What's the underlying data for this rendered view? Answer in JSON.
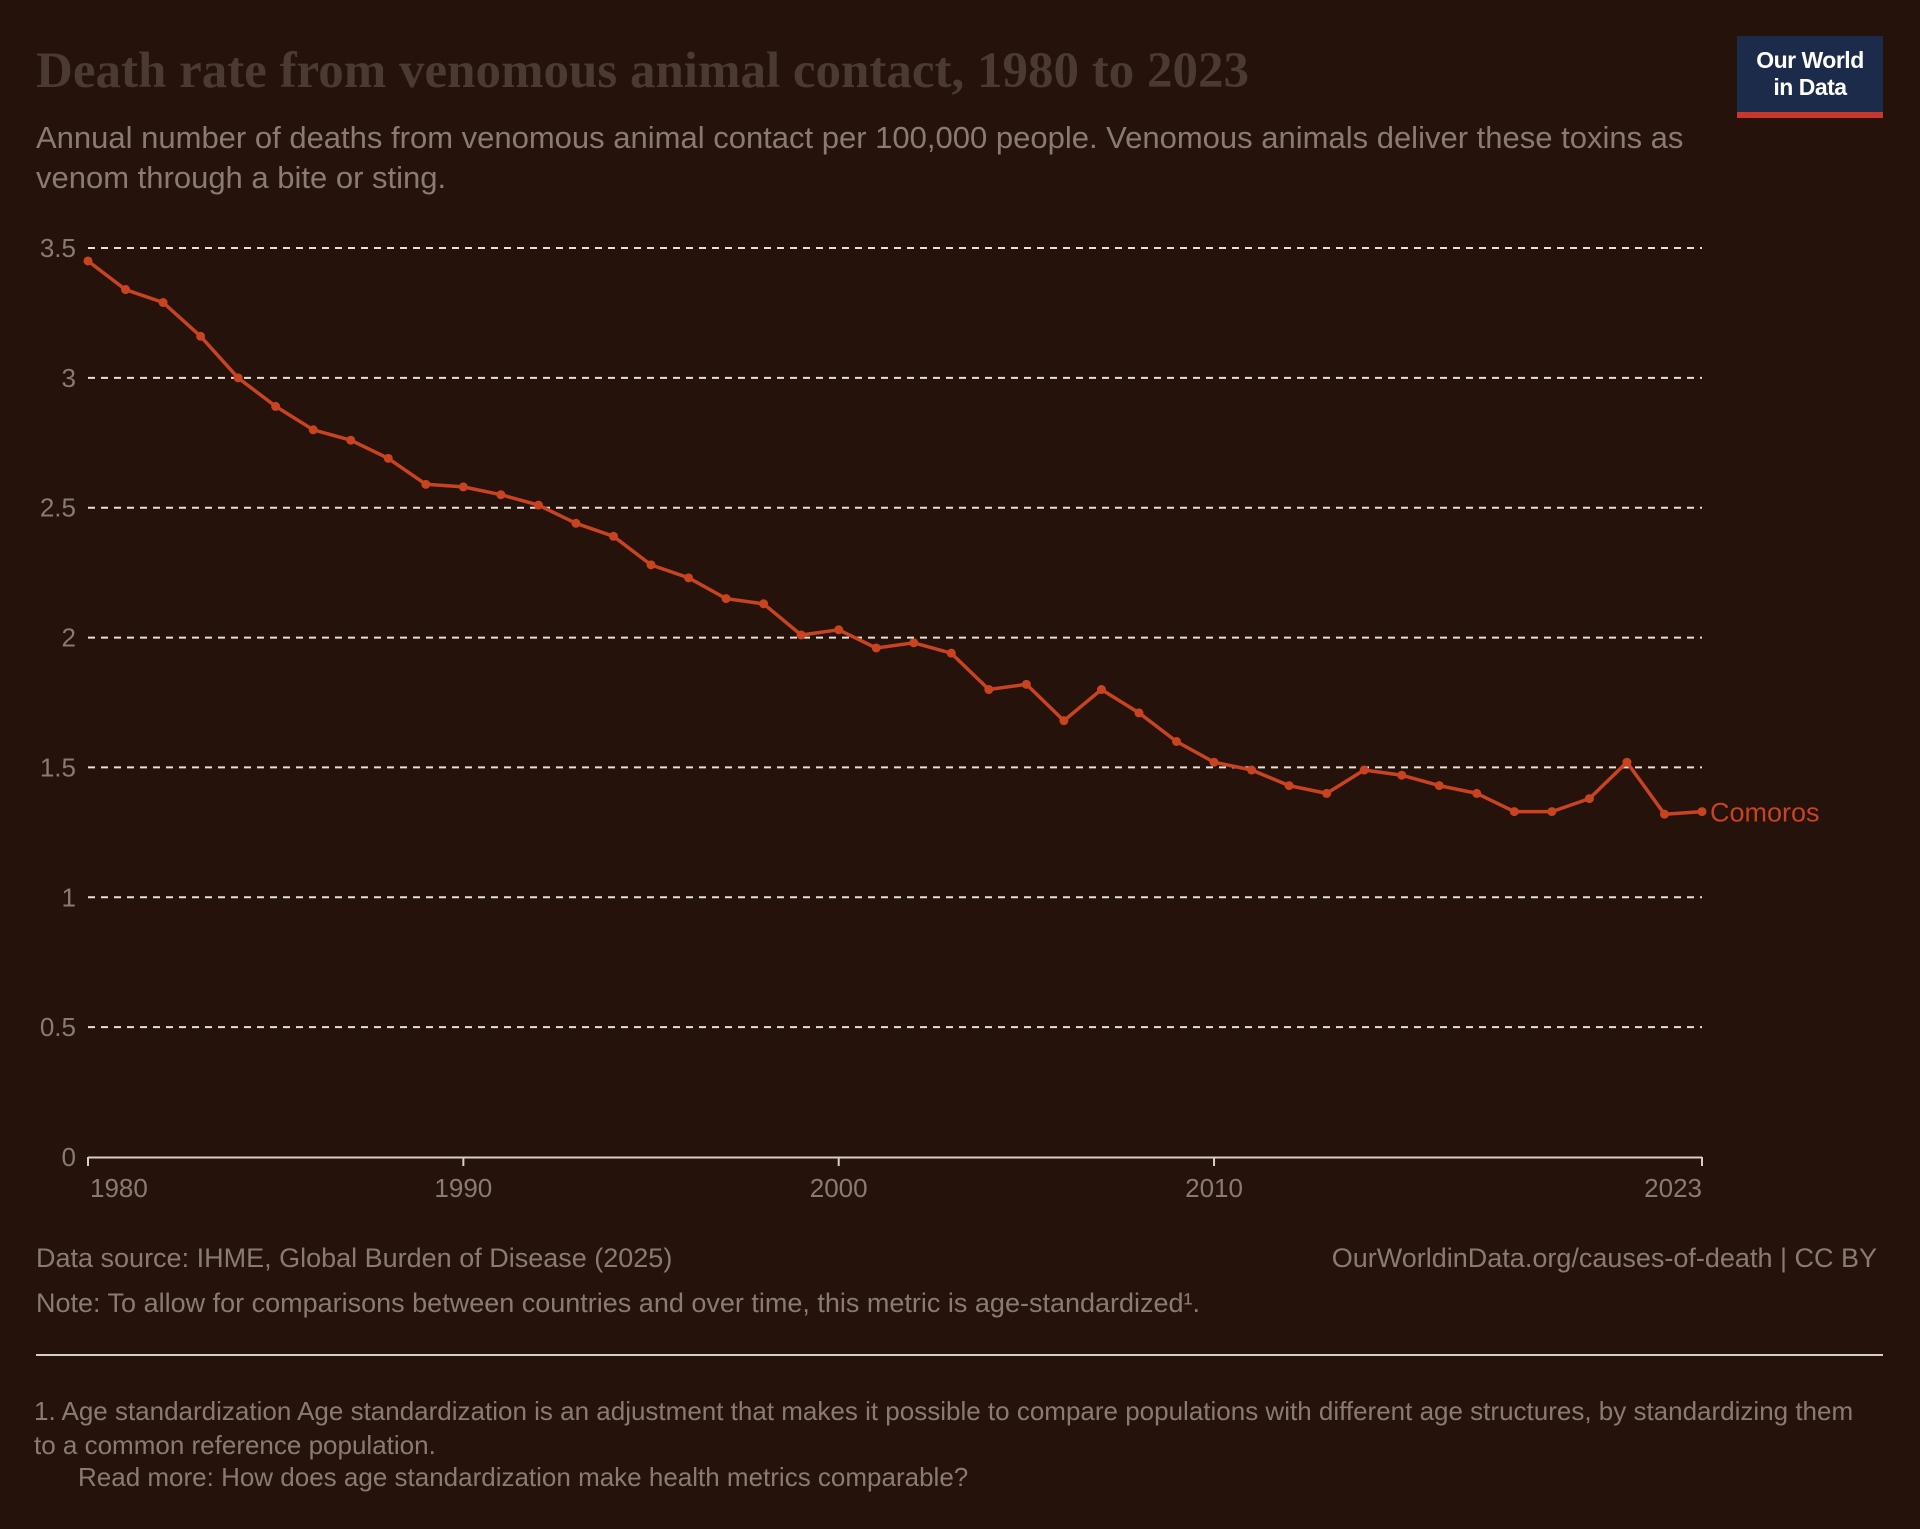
{
  "header": {
    "title": "Death rate from venomous animal contact, 1980 to 2023",
    "subtitle": "Annual number of deaths from venomous animal contact per 100,000 people. Venomous animals deliver these toxins as venom through a bite or sting.",
    "logo_line1": "Our World",
    "logo_line2": "in Data"
  },
  "footer": {
    "source": "Data source: IHME, Global Burden of Disease (2025)",
    "site": "OurWorldinData.org/causes-of-death | CC BY",
    "note": "Note: To allow for comparisons between countries and over time, this metric is age-standardized¹.",
    "footnote": "1. Age standardization Age standardization is an adjustment that makes it possible to compare populations with different age structures, by standardizing them to a common reference population.",
    "read_more": "Read more: How does age standardization make health metrics comparable?"
  },
  "colors": {
    "background": "#24120b",
    "series": "#c8431f",
    "grid": "#e8e0da",
    "tick_text": "#8a7b72"
  },
  "chart_data": {
    "type": "line",
    "x": [
      1980,
      1981,
      1982,
      1983,
      1984,
      1985,
      1986,
      1987,
      1988,
      1989,
      1990,
      1991,
      1992,
      1993,
      1994,
      1995,
      1996,
      1997,
      1998,
      1999,
      2000,
      2001,
      2002,
      2003,
      2004,
      2005,
      2006,
      2007,
      2008,
      2009,
      2010,
      2011,
      2012,
      2013,
      2014,
      2015,
      2016,
      2017,
      2018,
      2019,
      2020,
      2021,
      2022,
      2023
    ],
    "series": [
      {
        "name": "Comoros",
        "values": [
          3.45,
          3.34,
          3.29,
          3.16,
          3.0,
          2.89,
          2.8,
          2.76,
          2.69,
          2.59,
          2.58,
          2.55,
          2.51,
          2.44,
          2.39,
          2.28,
          2.23,
          2.15,
          2.13,
          2.01,
          2.03,
          1.96,
          1.98,
          1.94,
          1.8,
          1.82,
          1.68,
          1.8,
          1.71,
          1.6,
          1.52,
          1.49,
          1.43,
          1.4,
          1.49,
          1.47,
          1.43,
          1.4,
          1.33,
          1.33,
          1.38,
          1.52,
          1.32,
          1.33
        ]
      }
    ],
    "x_ticks": [
      "1980",
      "1990",
      "2000",
      "2010",
      "2023"
    ],
    "y_ticks": [
      "0",
      "0.5",
      "1",
      "1.5",
      "2",
      "2.5",
      "3",
      "3.5"
    ],
    "xlim": [
      1980,
      2023
    ],
    "ylim": [
      0,
      3.5
    ],
    "grid": true,
    "legend": "right-end label"
  }
}
